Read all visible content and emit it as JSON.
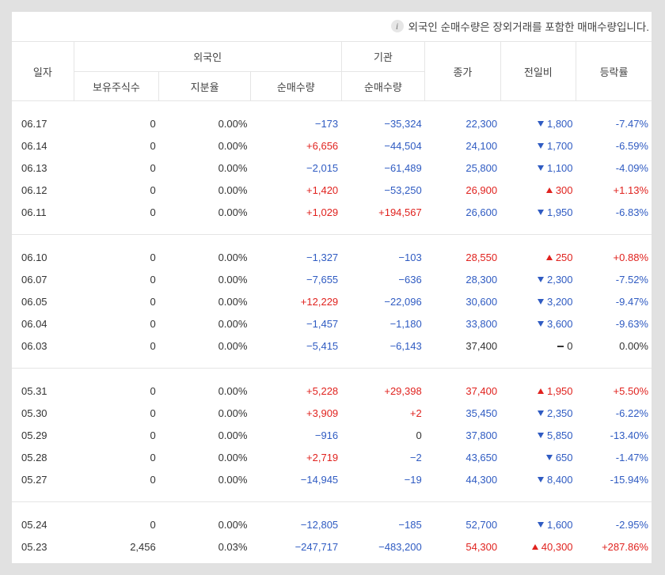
{
  "notice": "외국인 순매수량은 장외거래를 포함한 매매수량입니다.",
  "header": {
    "date": "일자",
    "foreign": "외국인",
    "institution": "기관",
    "close": "종가",
    "change": "전일비",
    "rate": "등락률",
    "holdings": "보유주식수",
    "ratio": "지분율",
    "foreign_net": "순매수량",
    "inst_net": "순매수량"
  },
  "colors": {
    "up": "#e0221e",
    "down": "#2f5bc2",
    "flat": "#333333"
  },
  "groups": [
    [
      {
        "date": "06.17",
        "holdings": "0",
        "ratio": "0.00%",
        "foreign_net": "−173",
        "inst_net": "−35,324",
        "close": "22,300",
        "change": "1,800",
        "rate": "-7.47%",
        "fdir": "down",
        "idir": "down",
        "dir": "down"
      },
      {
        "date": "06.14",
        "holdings": "0",
        "ratio": "0.00%",
        "foreign_net": "+6,656",
        "inst_net": "−44,504",
        "close": "24,100",
        "change": "1,700",
        "rate": "-6.59%",
        "fdir": "up",
        "idir": "down",
        "dir": "down"
      },
      {
        "date": "06.13",
        "holdings": "0",
        "ratio": "0.00%",
        "foreign_net": "−2,015",
        "inst_net": "−61,489",
        "close": "25,800",
        "change": "1,100",
        "rate": "-4.09%",
        "fdir": "down",
        "idir": "down",
        "dir": "down"
      },
      {
        "date": "06.12",
        "holdings": "0",
        "ratio": "0.00%",
        "foreign_net": "+1,420",
        "inst_net": "−53,250",
        "close": "26,900",
        "change": "300",
        "rate": "+1.13%",
        "fdir": "up",
        "idir": "down",
        "dir": "up"
      },
      {
        "date": "06.11",
        "holdings": "0",
        "ratio": "0.00%",
        "foreign_net": "+1,029",
        "inst_net": "+194,567",
        "close": "26,600",
        "change": "1,950",
        "rate": "-6.83%",
        "fdir": "up",
        "idir": "up",
        "dir": "down"
      }
    ],
    [
      {
        "date": "06.10",
        "holdings": "0",
        "ratio": "0.00%",
        "foreign_net": "−1,327",
        "inst_net": "−103",
        "close": "28,550",
        "change": "250",
        "rate": "+0.88%",
        "fdir": "down",
        "idir": "down",
        "dir": "up"
      },
      {
        "date": "06.07",
        "holdings": "0",
        "ratio": "0.00%",
        "foreign_net": "−7,655",
        "inst_net": "−636",
        "close": "28,300",
        "change": "2,300",
        "rate": "-7.52%",
        "fdir": "down",
        "idir": "down",
        "dir": "down"
      },
      {
        "date": "06.05",
        "holdings": "0",
        "ratio": "0.00%",
        "foreign_net": "+12,229",
        "inst_net": "−22,096",
        "close": "30,600",
        "change": "3,200",
        "rate": "-9.47%",
        "fdir": "up",
        "idir": "down",
        "dir": "down"
      },
      {
        "date": "06.04",
        "holdings": "0",
        "ratio": "0.00%",
        "foreign_net": "−1,457",
        "inst_net": "−1,180",
        "close": "33,800",
        "change": "3,600",
        "rate": "-9.63%",
        "fdir": "down",
        "idir": "down",
        "dir": "down"
      },
      {
        "date": "06.03",
        "holdings": "0",
        "ratio": "0.00%",
        "foreign_net": "−5,415",
        "inst_net": "−6,143",
        "close": "37,400",
        "change": "0",
        "rate": "0.00%",
        "fdir": "down",
        "idir": "down",
        "dir": "flat"
      }
    ],
    [
      {
        "date": "05.31",
        "holdings": "0",
        "ratio": "0.00%",
        "foreign_net": "+5,228",
        "inst_net": "+29,398",
        "close": "37,400",
        "change": "1,950",
        "rate": "+5.50%",
        "fdir": "up",
        "idir": "up",
        "dir": "up"
      },
      {
        "date": "05.30",
        "holdings": "0",
        "ratio": "0.00%",
        "foreign_net": "+3,909",
        "inst_net": "+2",
        "close": "35,450",
        "change": "2,350",
        "rate": "-6.22%",
        "fdir": "up",
        "idir": "up",
        "dir": "down"
      },
      {
        "date": "05.29",
        "holdings": "0",
        "ratio": "0.00%",
        "foreign_net": "−916",
        "inst_net": "0",
        "close": "37,800",
        "change": "5,850",
        "rate": "-13.40%",
        "fdir": "down",
        "idir": "flat",
        "dir": "down"
      },
      {
        "date": "05.28",
        "holdings": "0",
        "ratio": "0.00%",
        "foreign_net": "+2,719",
        "inst_net": "−2",
        "close": "43,650",
        "change": "650",
        "rate": "-1.47%",
        "fdir": "up",
        "idir": "down",
        "dir": "down"
      },
      {
        "date": "05.27",
        "holdings": "0",
        "ratio": "0.00%",
        "foreign_net": "−14,945",
        "inst_net": "−19",
        "close": "44,300",
        "change": "8,400",
        "rate": "-15.94%",
        "fdir": "down",
        "idir": "down",
        "dir": "down"
      }
    ],
    [
      {
        "date": "05.24",
        "holdings": "0",
        "ratio": "0.00%",
        "foreign_net": "−12,805",
        "inst_net": "−185",
        "close": "52,700",
        "change": "1,600",
        "rate": "-2.95%",
        "fdir": "down",
        "idir": "down",
        "dir": "down"
      },
      {
        "date": "05.23",
        "holdings": "2,456",
        "ratio": "0.03%",
        "foreign_net": "−247,717",
        "inst_net": "−483,200",
        "close": "54,300",
        "change": "40,300",
        "rate": "+287.86%",
        "fdir": "down",
        "idir": "down",
        "dir": "up"
      }
    ]
  ]
}
